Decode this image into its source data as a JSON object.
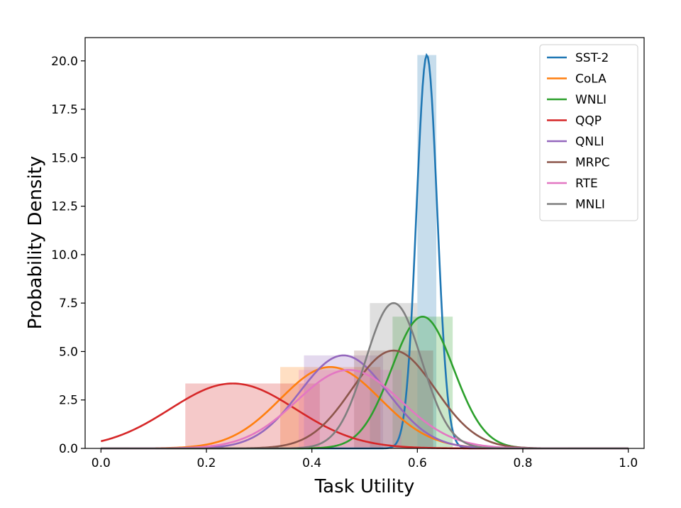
{
  "chart_data": {
    "type": "line",
    "xlabel": "Task Utility",
    "ylabel": "Probability Density",
    "xlim": [
      -0.03,
      1.03
    ],
    "ylim": [
      0,
      21.2
    ],
    "xticks": [
      "0.0",
      "0.2",
      "0.4",
      "0.6",
      "0.8",
      "1.0"
    ],
    "yticks": [
      "0.0",
      "2.5",
      "5.0",
      "7.5",
      "10.0",
      "12.5",
      "15.0",
      "17.5",
      "20.0"
    ],
    "legend_position": "top-right",
    "series": [
      {
        "name": "SST-2",
        "color": "#1f77b4",
        "mean": 0.618,
        "peak": 20.3,
        "bar": [
          0.6,
          0.636,
          20.3
        ]
      },
      {
        "name": "CoLA",
        "color": "#ff7f0e",
        "mean": 0.435,
        "peak": 4.2,
        "bar": [
          0.34,
          0.53,
          4.2
        ]
      },
      {
        "name": "WNLI",
        "color": "#2ca02c",
        "mean": 0.61,
        "peak": 6.8,
        "bar": [
          0.553,
          0.667,
          6.8
        ]
      },
      {
        "name": "QQP",
        "color": "#d62728",
        "mean": 0.25,
        "peak": 3.35,
        "bar": [
          0.16,
          0.415,
          3.35
        ]
      },
      {
        "name": "QNLI",
        "color": "#9467bd",
        "mean": 0.46,
        "peak": 4.8,
        "bar": [
          0.385,
          0.535,
          4.8
        ]
      },
      {
        "name": "MRPC",
        "color": "#8c564b",
        "mean": 0.555,
        "peak": 5.05,
        "bar": [
          0.48,
          0.63,
          5.05
        ]
      },
      {
        "name": "RTE",
        "color": "#e377c2",
        "mean": 0.47,
        "peak": 4.05,
        "bar": [
          0.375,
          0.57,
          4.05
        ]
      },
      {
        "name": "MNLI",
        "color": "#7f7f7f",
        "mean": 0.555,
        "peak": 7.5,
        "bar": [
          0.51,
          0.6,
          7.5
        ]
      }
    ]
  }
}
